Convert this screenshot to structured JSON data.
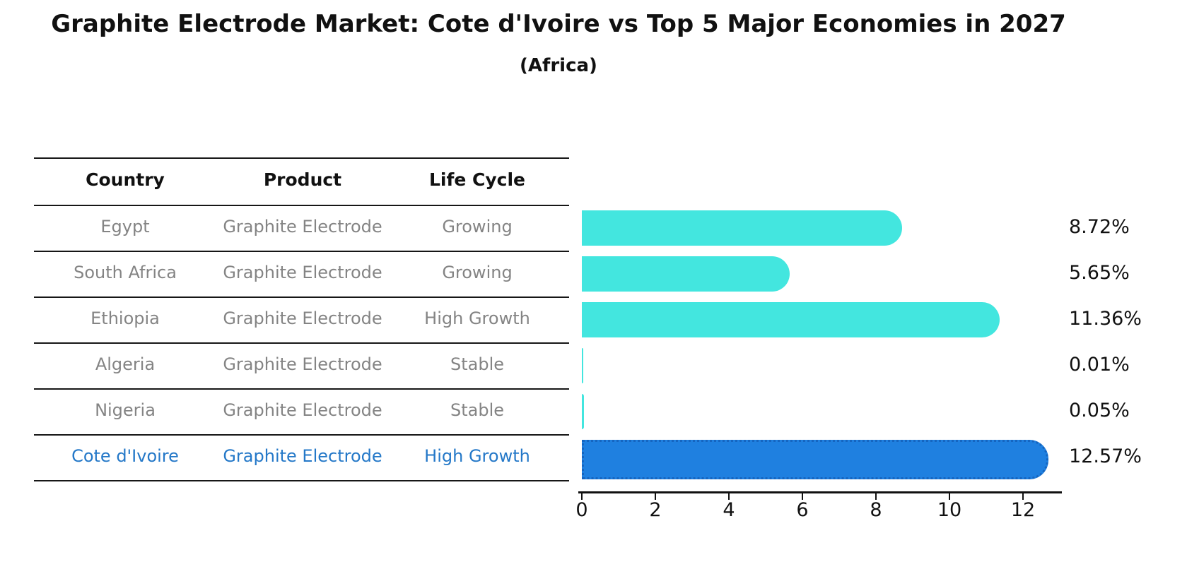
{
  "title": "Graphite Electrode Market: Cote d'Ivoire vs Top 5 Major Economies in 2027",
  "subtitle": "(Africa)",
  "table": {
    "columns": [
      "Country",
      "Product",
      "Life Cycle"
    ],
    "rows": [
      {
        "country": "Egypt",
        "product": "Graphite Electrode",
        "life_cycle": "Growing",
        "highlight": false
      },
      {
        "country": "South Africa",
        "product": "Graphite Electrode",
        "life_cycle": "Growing",
        "highlight": false
      },
      {
        "country": "Ethiopia",
        "product": "Graphite Electrode",
        "life_cycle": "High Growth",
        "highlight": false
      },
      {
        "country": "Algeria",
        "product": "Graphite Electrode",
        "life_cycle": "Stable",
        "highlight": false
      },
      {
        "country": "Nigeria",
        "product": "Graphite Electrode",
        "life_cycle": "Stable",
        "highlight": false
      },
      {
        "country": "Cote d'Ivoire",
        "product": "Graphite Electrode",
        "life_cycle": "High Growth",
        "highlight": true
      }
    ]
  },
  "chart_data": {
    "type": "bar",
    "orientation": "horizontal",
    "title": "Graphite Electrode Market: Cote d'Ivoire vs Top 5 Major Economies in 2027",
    "subtitle": "(Africa)",
    "categories": [
      "Egypt",
      "South Africa",
      "Ethiopia",
      "Algeria",
      "Nigeria",
      "Cote d'Ivoire"
    ],
    "values": [
      8.72,
      5.65,
      11.36,
      0.01,
      0.05,
      12.57
    ],
    "value_labels": [
      "8.72%",
      "5.65%",
      "11.36%",
      "0.01%",
      "0.05%",
      "12.57%"
    ],
    "xlabel": "",
    "ylabel": "",
    "xlim": [
      0,
      13.3
    ],
    "xticks": [
      0,
      2,
      4,
      6,
      8,
      10,
      12
    ],
    "grid": false,
    "legend": false,
    "highlight_index": 5
  },
  "colors": {
    "bar": "#43E6DF",
    "highlight_bar": "#1F80E0",
    "highlight_border": "#1565C0",
    "highlight_text": "#2478C8",
    "row_text": "#848484",
    "line": "#161616"
  }
}
